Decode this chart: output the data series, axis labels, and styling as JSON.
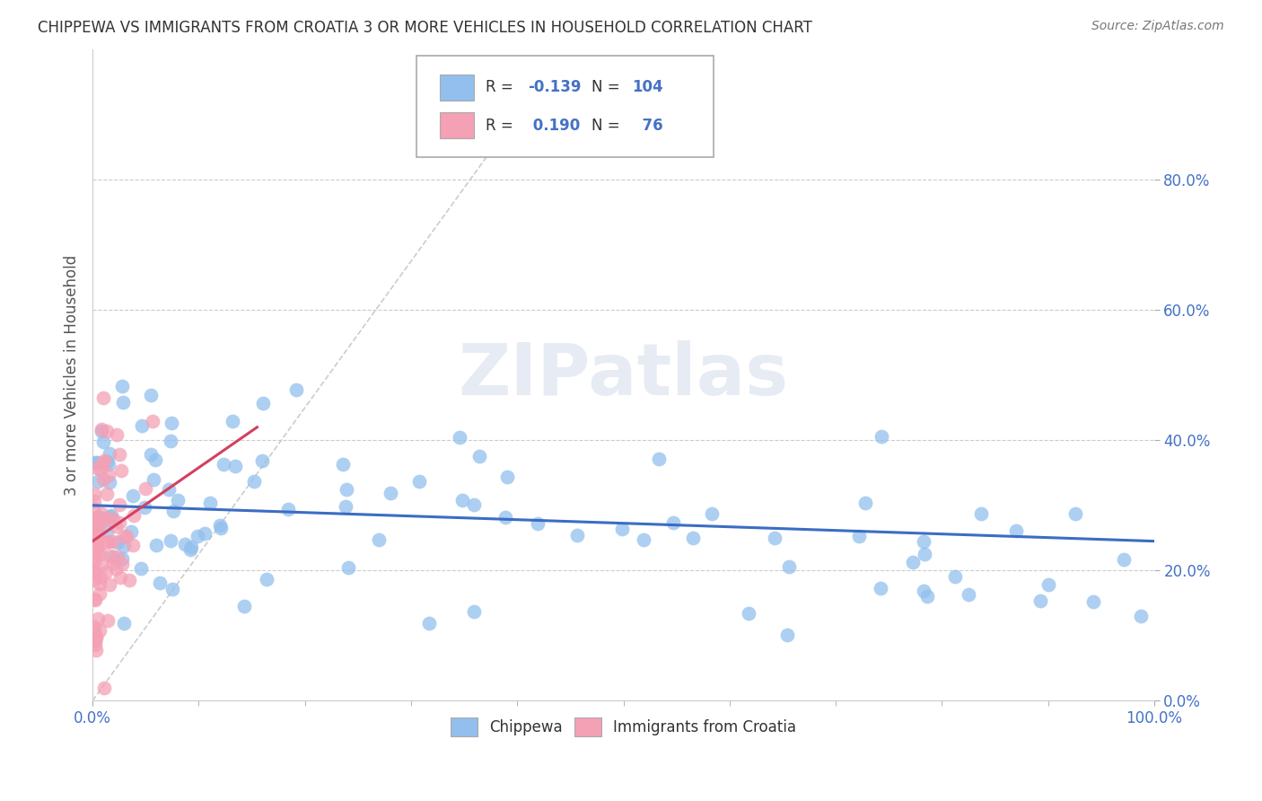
{
  "title": "CHIPPEWA VS IMMIGRANTS FROM CROATIA 3 OR MORE VEHICLES IN HOUSEHOLD CORRELATION CHART",
  "source": "Source: ZipAtlas.com",
  "ylabel": "3 or more Vehicles in Household",
  "xlim": [
    0.0,
    1.0
  ],
  "ylim": [
    0.0,
    1.0
  ],
  "ytick_positions": [
    0.0,
    0.2,
    0.4,
    0.6,
    0.8
  ],
  "ytick_labels": [
    "0.0%",
    "20.0%",
    "40.0%",
    "60.0%",
    "80.0%"
  ],
  "xtick_left_label": "0.0%",
  "xtick_right_label": "100.0%",
  "chippewa_color": "#92BFED",
  "croatia_color": "#F4A0B5",
  "chippewa_line_color": "#3B6DC4",
  "croatia_line_color": "#D44060",
  "chippewa_R": -0.139,
  "chippewa_N": 104,
  "croatia_R": 0.19,
  "croatia_N": 76,
  "legend_label_1": "Chippewa",
  "legend_label_2": "Immigrants from Croatia",
  "watermark": "ZIPatlas",
  "background_color": "#ffffff",
  "grid_color": "#cccccc",
  "chippewa_trend_x0": 0.0,
  "chippewa_trend_x1": 1.0,
  "chippewa_trend_y0": 0.3,
  "chippewa_trend_y1": 0.245,
  "croatia_trend_x0": 0.0,
  "croatia_trend_x1": 0.155,
  "croatia_trend_y0": 0.245,
  "croatia_trend_y1": 0.42,
  "diag_line_x0": 0.0,
  "diag_line_x1": 0.4,
  "diag_line_y0": 0.0,
  "diag_line_y1": 0.9
}
